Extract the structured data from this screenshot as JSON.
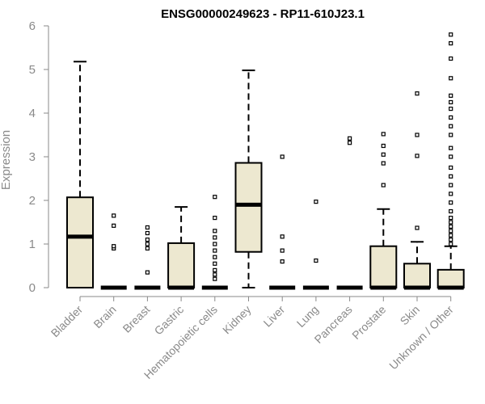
{
  "chart_data": {
    "type": "boxplot",
    "title": "ENSG00000249623 - RP11-610J23.1",
    "xlabel": "",
    "ylabel": "Expression",
    "ylim": [
      0,
      6
    ],
    "yticks": [
      0,
      1,
      2,
      3,
      4,
      5,
      6
    ],
    "grid": false,
    "box_fill": "#ede8d0",
    "categories": [
      "Bladder",
      "Brain",
      "Breast",
      "Gastric",
      "Hematopoietic cells",
      "Kidney",
      "Liver",
      "Lung",
      "Pancreas",
      "Prostate",
      "Skin",
      "Unknown / Other"
    ],
    "boxes": [
      {
        "q1": 0,
        "median": 1.17,
        "q3": 2.07,
        "whisker_low": 0,
        "whisker_high": 5.18,
        "outliers": []
      },
      {
        "q1": 0,
        "median": 0,
        "q3": 0,
        "whisker_low": 0,
        "whisker_high": 0,
        "outliers": [
          0.9,
          0.95,
          1.42,
          1.65
        ]
      },
      {
        "q1": 0,
        "median": 0,
        "q3": 0,
        "whisker_low": 0,
        "whisker_high": 0,
        "outliers": [
          0.35,
          0.9,
          1.0,
          1.1,
          1.25,
          1.38
        ]
      },
      {
        "q1": 0,
        "median": 0,
        "q3": 1.02,
        "whisker_low": 0,
        "whisker_high": 1.85,
        "outliers": []
      },
      {
        "q1": 0,
        "median": 0,
        "q3": 0,
        "whisker_low": 0,
        "whisker_high": 0,
        "outliers": [
          0.2,
          0.3,
          0.4,
          0.55,
          0.7,
          0.85,
          1.0,
          1.15,
          1.3,
          1.6,
          2.08
        ]
      },
      {
        "q1": 0.82,
        "median": 1.9,
        "q3": 2.86,
        "whisker_low": 0,
        "whisker_high": 4.98,
        "outliers": []
      },
      {
        "q1": 0,
        "median": 0,
        "q3": 0,
        "whisker_low": 0,
        "whisker_high": 0,
        "outliers": [
          0.6,
          0.85,
          1.17,
          3.0
        ]
      },
      {
        "q1": 0,
        "median": 0,
        "q3": 0,
        "whisker_low": 0,
        "whisker_high": 0,
        "outliers": [
          0.62,
          1.97
        ]
      },
      {
        "q1": 0,
        "median": 0,
        "q3": 0,
        "whisker_low": 0,
        "whisker_high": 0,
        "outliers": [
          3.32,
          3.42
        ]
      },
      {
        "q1": 0,
        "median": 0,
        "q3": 0.95,
        "whisker_low": 0,
        "whisker_high": 1.8,
        "outliers": [
          2.35,
          2.85,
          3.05,
          3.25,
          3.52
        ]
      },
      {
        "q1": 0,
        "median": 0,
        "q3": 0.55,
        "whisker_low": 0,
        "whisker_high": 1.05,
        "outliers": [
          1.37,
          3.02,
          3.5,
          4.45
        ]
      },
      {
        "q1": 0,
        "median": 0,
        "q3": 0.41,
        "whisker_low": 0,
        "whisker_high": 0.95,
        "outliers": [
          1.0,
          1.1,
          1.2,
          1.3,
          1.4,
          1.5,
          1.6,
          1.75,
          1.95,
          2.15,
          2.35,
          2.55,
          2.75,
          3.0,
          3.2,
          3.5,
          3.7,
          3.9,
          4.1,
          4.25,
          4.4,
          4.8,
          5.25,
          5.6,
          5.8
        ]
      }
    ]
  }
}
